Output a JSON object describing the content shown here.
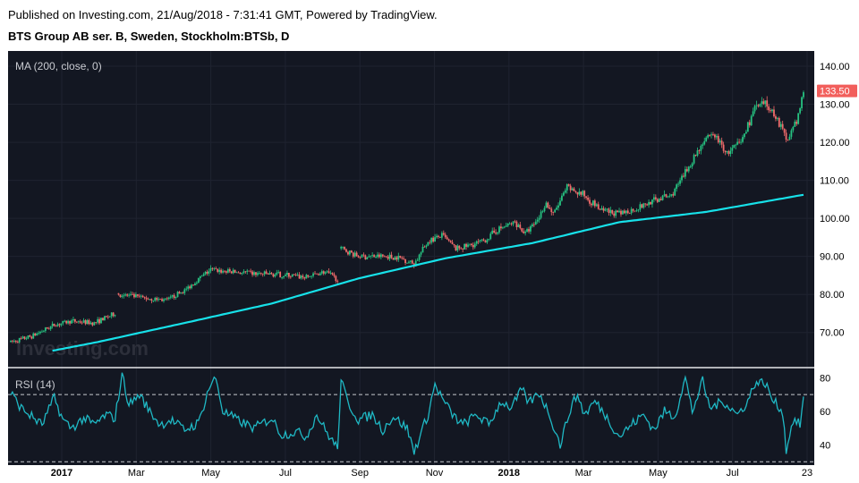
{
  "header": {
    "published": "Published on Investing.com, 21/Aug/2018 - 7:31:41 GMT, Powered by TradingView.",
    "symbol": "BTS Group AB ser. B, Sweden, Stockholm:BTSb, D"
  },
  "watermark": "Investing.com",
  "colors": {
    "background": "#131722",
    "up": "#26c281",
    "down": "#f06a6a",
    "ma": "#17e1e9",
    "rsi": "#1fb8c4",
    "grid": "#1f2330",
    "last_price_bg": "#f25f5c"
  },
  "chart_data": [
    {
      "type": "candlestick",
      "title": "MA (200, close, 0)",
      "ylim": [
        61,
        144
      ],
      "y_ticks": [
        "70.00",
        "80.00",
        "90.00",
        "100.00",
        "110.00",
        "120.00",
        "130.00",
        "140.00"
      ],
      "x_ticks": [
        {
          "label": "2017",
          "bold": true
        },
        {
          "label": "Mar",
          "bold": false
        },
        {
          "label": "May",
          "bold": false
        },
        {
          "label": "Jul",
          "bold": false
        },
        {
          "label": "Sep",
          "bold": false
        },
        {
          "label": "Nov",
          "bold": false
        },
        {
          "label": "2018",
          "bold": true
        },
        {
          "label": "Mar",
          "bold": false
        },
        {
          "label": "May",
          "bold": false
        },
        {
          "label": "Jul",
          "bold": false
        },
        {
          "label": "23",
          "bold": false
        }
      ],
      "last_price": "133.50",
      "price_path": [
        [
          0,
          67.5
        ],
        [
          12,
          69
        ],
        [
          25,
          72
        ],
        [
          35,
          73
        ],
        [
          48,
          72.5
        ],
        [
          60,
          75
        ],
        [
          62,
          80
        ],
        [
          78,
          79
        ],
        [
          90,
          78.5
        ],
        [
          100,
          81
        ],
        [
          108,
          84
        ],
        [
          115,
          86.5
        ],
        [
          125,
          86
        ],
        [
          140,
          85.5
        ],
        [
          160,
          85
        ],
        [
          170,
          84.5
        ],
        [
          180,
          86
        ],
        [
          188,
          84
        ],
        [
          190,
          92
        ],
        [
          200,
          90
        ],
        [
          215,
          90
        ],
        [
          225,
          89.5
        ],
        [
          232,
          88
        ],
        [
          240,
          94
        ],
        [
          248,
          95.5
        ],
        [
          256,
          92
        ],
        [
          265,
          93
        ],
        [
          272,
          94
        ],
        [
          280,
          97
        ],
        [
          290,
          99
        ],
        [
          296,
          96
        ],
        [
          302,
          99
        ],
        [
          308,
          104
        ],
        [
          312,
          101
        ],
        [
          320,
          108
        ],
        [
          330,
          106
        ],
        [
          340,
          102
        ],
        [
          350,
          101
        ],
        [
          362,
          103
        ],
        [
          372,
          105
        ],
        [
          380,
          106
        ],
        [
          388,
          112
        ],
        [
          398,
          120
        ],
        [
          405,
          122
        ],
        [
          412,
          117
        ],
        [
          420,
          120
        ],
        [
          428,
          129
        ],
        [
          434,
          130
        ],
        [
          440,
          127
        ],
        [
          446,
          121
        ],
        [
          452,
          125
        ],
        [
          456,
          133.5
        ]
      ],
      "gaps": [
        [
          60,
          62
        ],
        [
          188,
          190
        ]
      ],
      "candle_count": 457,
      "ma200": [
        [
          24,
          65.2
        ],
        [
          50,
          67.5
        ],
        [
          100,
          72.5
        ],
        [
          150,
          77.6
        ],
        [
          200,
          84.2
        ],
        [
          250,
          89.5
        ],
        [
          300,
          93.5
        ],
        [
          350,
          99
        ],
        [
          400,
          101.7
        ],
        [
          456,
          106.2
        ]
      ]
    },
    {
      "type": "line",
      "title": "RSI (14)",
      "ylim": [
        28,
        85
      ],
      "y_ticks": [
        "40",
        "60",
        "80"
      ],
      "bands": [
        30,
        70
      ],
      "rsi": [
        [
          0,
          71
        ],
        [
          6,
          62
        ],
        [
          12,
          57
        ],
        [
          18,
          52
        ],
        [
          25,
          68
        ],
        [
          30,
          55
        ],
        [
          35,
          50
        ],
        [
          42,
          56
        ],
        [
          48,
          52
        ],
        [
          55,
          58
        ],
        [
          60,
          56
        ],
        [
          64,
          82
        ],
        [
          68,
          64
        ],
        [
          74,
          70
        ],
        [
          80,
          60
        ],
        [
          86,
          52
        ],
        [
          92,
          55
        ],
        [
          100,
          49
        ],
        [
          108,
          53
        ],
        [
          114,
          74
        ],
        [
          118,
          80
        ],
        [
          122,
          60
        ],
        [
          130,
          55
        ],
        [
          140,
          50
        ],
        [
          150,
          56
        ],
        [
          156,
          46
        ],
        [
          164,
          48
        ],
        [
          170,
          45
        ],
        [
          176,
          58
        ],
        [
          182,
          47
        ],
        [
          188,
          38
        ],
        [
          190,
          78
        ],
        [
          194,
          65
        ],
        [
          200,
          55
        ],
        [
          208,
          58
        ],
        [
          214,
          49
        ],
        [
          220,
          57
        ],
        [
          228,
          50
        ],
        [
          232,
          36
        ],
        [
          240,
          58
        ],
        [
          244,
          76
        ],
        [
          248,
          68
        ],
        [
          254,
          58
        ],
        [
          260,
          52
        ],
        [
          268,
          58
        ],
        [
          275,
          52
        ],
        [
          282,
          66
        ],
        [
          288,
          62
        ],
        [
          294,
          73
        ],
        [
          298,
          65
        ],
        [
          304,
          71
        ],
        [
          310,
          58
        ],
        [
          316,
          40
        ],
        [
          322,
          62
        ],
        [
          326,
          70
        ],
        [
          330,
          58
        ],
        [
          336,
          66
        ],
        [
          342,
          58
        ],
        [
          350,
          45
        ],
        [
          358,
          53
        ],
        [
          364,
          58
        ],
        [
          370,
          49
        ],
        [
          376,
          60
        ],
        [
          382,
          57
        ],
        [
          388,
          80
        ],
        [
          392,
          60
        ],
        [
          398,
          78
        ],
        [
          402,
          62
        ],
        [
          410,
          66
        ],
        [
          418,
          58
        ],
        [
          424,
          66
        ],
        [
          428,
          77
        ],
        [
          434,
          77
        ],
        [
          438,
          67
        ],
        [
          444,
          60
        ],
        [
          446,
          37
        ],
        [
          450,
          55
        ],
        [
          454,
          52
        ],
        [
          456,
          68
        ]
      ]
    }
  ]
}
